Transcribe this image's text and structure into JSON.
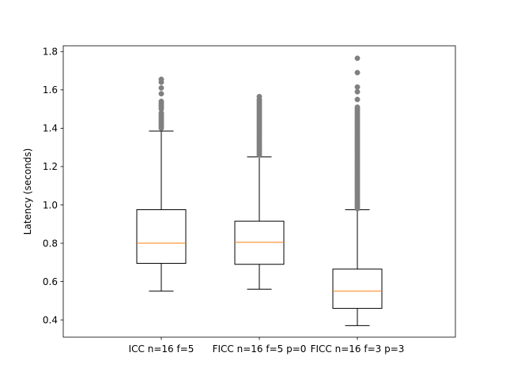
{
  "chart_data": {
    "type": "box",
    "title": "",
    "xlabel": "",
    "ylabel": "Latency (seconds)",
    "ylim": [
      0.31,
      1.83
    ],
    "yticks": [
      0.4,
      0.6,
      0.8,
      1.0,
      1.2,
      1.4,
      1.6,
      1.8
    ],
    "ytick_labels": [
      "0.4",
      "0.6",
      "0.8",
      "1.0",
      "1.2",
      "1.4",
      "1.6",
      "1.8"
    ],
    "grid": false,
    "colors": {
      "box": "#000000",
      "median": "#ff7f0e",
      "outlier": "#808080"
    },
    "categories": [
      "ICC n=16 f=5",
      "FICC n=16 f=5 p=0",
      "FICC n=16 f=3 p=3"
    ],
    "boxes": [
      {
        "label": "ICC n=16 f=5",
        "whisker_low": 0.55,
        "q1": 0.695,
        "median": 0.8,
        "q3": 0.975,
        "whisker_high": 1.385,
        "outliers": [
          1.4,
          1.41,
          1.42,
          1.43,
          1.44,
          1.45,
          1.46,
          1.47,
          1.48,
          1.5,
          1.51,
          1.52,
          1.53,
          1.54,
          1.58,
          1.61,
          1.64,
          1.655
        ]
      },
      {
        "label": "FICC n=16 f=5 p=0",
        "whisker_low": 0.56,
        "q1": 0.69,
        "median": 0.805,
        "q3": 0.915,
        "whisker_high": 1.25,
        "outliers": [
          1.26,
          1.27,
          1.28,
          1.29,
          1.3,
          1.31,
          1.32,
          1.33,
          1.34,
          1.35,
          1.36,
          1.37,
          1.38,
          1.39,
          1.4,
          1.41,
          1.42,
          1.43,
          1.44,
          1.45,
          1.46,
          1.47,
          1.48,
          1.49,
          1.5,
          1.51,
          1.52,
          1.53,
          1.54,
          1.55,
          1.565
        ]
      },
      {
        "label": "FICC n=16 f=3 p=3",
        "whisker_low": 0.37,
        "q1": 0.46,
        "median": 0.55,
        "q3": 0.665,
        "whisker_high": 0.975,
        "outliers": [
          0.98,
          0.99,
          1.0,
          1.01,
          1.02,
          1.03,
          1.04,
          1.05,
          1.06,
          1.07,
          1.08,
          1.09,
          1.1,
          1.11,
          1.12,
          1.13,
          1.14,
          1.15,
          1.16,
          1.17,
          1.18,
          1.19,
          1.2,
          1.21,
          1.22,
          1.23,
          1.24,
          1.25,
          1.26,
          1.27,
          1.28,
          1.29,
          1.3,
          1.31,
          1.32,
          1.33,
          1.34,
          1.35,
          1.36,
          1.37,
          1.38,
          1.39,
          1.4,
          1.41,
          1.42,
          1.43,
          1.44,
          1.45,
          1.46,
          1.47,
          1.48,
          1.49,
          1.5,
          1.51,
          1.55,
          1.59,
          1.615,
          1.69,
          1.765
        ]
      }
    ]
  }
}
